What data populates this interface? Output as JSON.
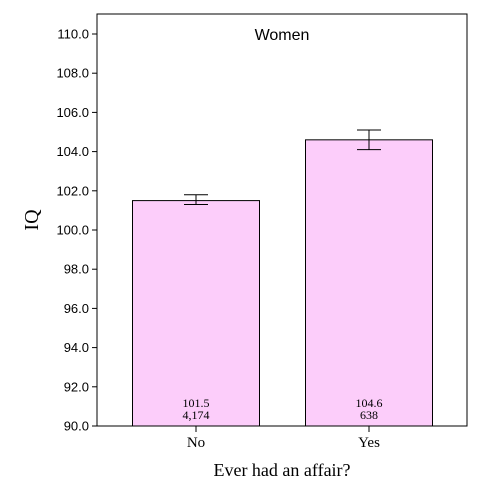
{
  "chart_data": {
    "type": "bar",
    "title": "Women",
    "xlabel": "Ever had an affair?",
    "ylabel": "IQ",
    "categories": [
      "No",
      "Yes"
    ],
    "values": [
      101.5,
      104.6
    ],
    "counts": [
      "4,174",
      "638"
    ],
    "value_labels": [
      "101.5",
      "104.6"
    ],
    "error_bars": [
      {
        "low": 101.3,
        "high": 101.8
      },
      {
        "low": 104.1,
        "high": 105.1
      }
    ],
    "ylim": [
      90.0,
      110.0
    ],
    "yticks": [
      90.0,
      92.0,
      94.0,
      96.0,
      98.0,
      100.0,
      102.0,
      104.0,
      106.0,
      108.0,
      110.0
    ],
    "ytick_labels": [
      "90.0",
      "92.0",
      "94.0",
      "96.0",
      "98.0",
      "100.0",
      "102.0",
      "104.0",
      "106.0",
      "108.0",
      "110.0"
    ],
    "bar_color": "#fccdfa",
    "grid": false
  }
}
